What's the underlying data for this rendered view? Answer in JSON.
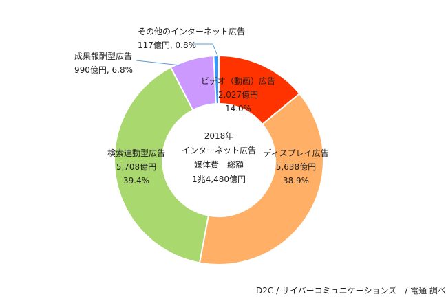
{
  "chart_data": {
    "type": "pie",
    "center_text": [
      "2018年",
      "インターネット広告",
      "媒体費　総額",
      "1兆4,480億円"
    ],
    "slices": [
      {
        "name": "ビデオ（動画）広告",
        "amount": "2,027億円",
        "percent": "14.0%",
        "value": 14.0,
        "color": "#ff3300"
      },
      {
        "name": "ディスプレイ広告",
        "amount": "5,638億円",
        "percent": "38.9%",
        "value": 38.9,
        "color": "#ffb066"
      },
      {
        "name": "検索連動型広告",
        "amount": "5,708億円",
        "percent": "39.4%",
        "value": 39.4,
        "color": "#a9d86e"
      },
      {
        "name": "成果報酬型広告",
        "amount": "990億円",
        "percent": "6.8%",
        "value": 6.8,
        "color": "#cc99ff"
      },
      {
        "name": "その他のインターネット広告",
        "amount": "117億円",
        "percent": "0.8%",
        "value": 0.8,
        "color": "#3399ff"
      }
    ]
  },
  "source": "D2C / サイバーコミュニケーションズ　/ 電通 調べ"
}
